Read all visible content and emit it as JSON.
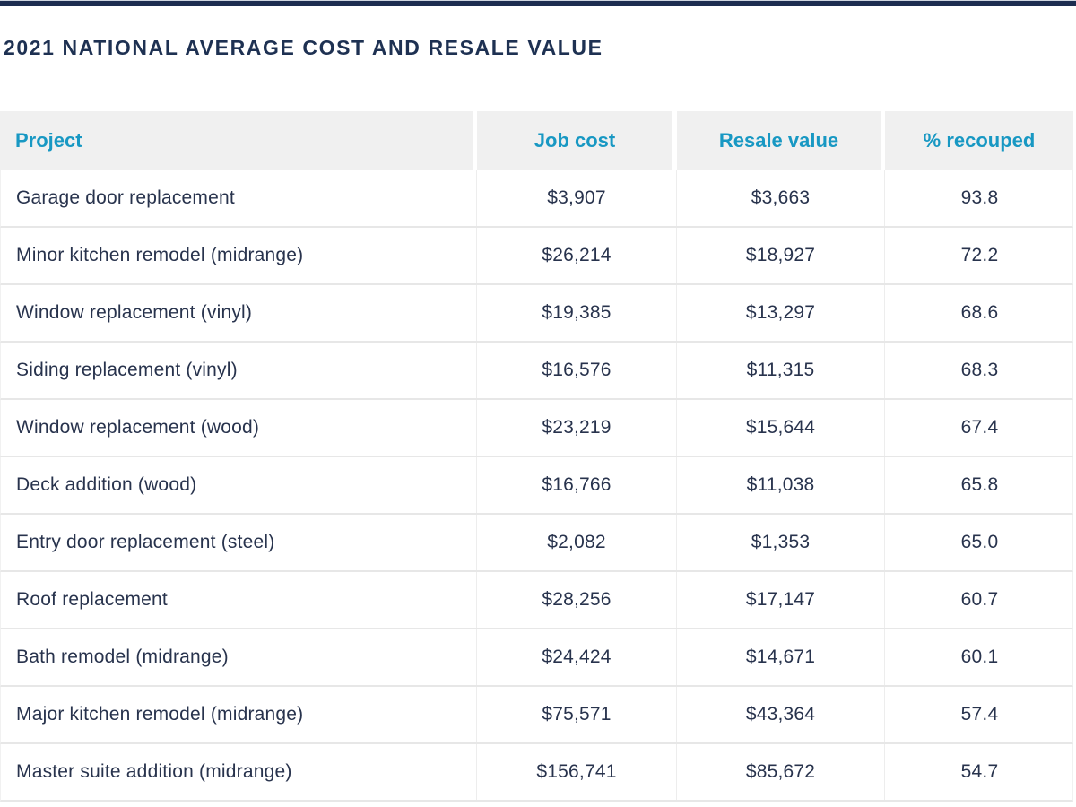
{
  "page": {
    "title": "2021 NATIONAL AVERAGE COST AND RESALE VALUE"
  },
  "colors": {
    "accent_teal": "#1898c3",
    "body_text_navy": "#28334d",
    "title_navy": "#1e3152",
    "top_bar_navy": "#1d2d50",
    "header_bg_gray": "#f0f0f0",
    "row_divider_gray": "#e7e7e7"
  },
  "table": {
    "columns": [
      "Project",
      "Job cost",
      "Resale value",
      "% recouped"
    ],
    "rows": [
      {
        "project": "Garage door replacement",
        "job_cost": "$3,907",
        "resale_value": "$3,663",
        "pct_recouped": "93.8"
      },
      {
        "project": "Minor kitchen remodel (midrange)",
        "job_cost": "$26,214",
        "resale_value": "$18,927",
        "pct_recouped": "72.2"
      },
      {
        "project": "Window replacement (vinyl)",
        "job_cost": "$19,385",
        "resale_value": "$13,297",
        "pct_recouped": "68.6"
      },
      {
        "project": "Siding replacement (vinyl)",
        "job_cost": "$16,576",
        "resale_value": "$11,315",
        "pct_recouped": "68.3"
      },
      {
        "project": "Window replacement (wood)",
        "job_cost": "$23,219",
        "resale_value": "$15,644",
        "pct_recouped": "67.4"
      },
      {
        "project": "Deck addition (wood)",
        "job_cost": "$16,766",
        "resale_value": "$11,038",
        "pct_recouped": "65.8"
      },
      {
        "project": "Entry door replacement (steel)",
        "job_cost": "$2,082",
        "resale_value": "$1,353",
        "pct_recouped": "65.0"
      },
      {
        "project": "Roof replacement",
        "job_cost": "$28,256",
        "resale_value": "$17,147",
        "pct_recouped": "60.7"
      },
      {
        "project": "Bath remodel (midrange)",
        "job_cost": "$24,424",
        "resale_value": "$14,671",
        "pct_recouped": "60.1"
      },
      {
        "project": "Major kitchen remodel (midrange)",
        "job_cost": "$75,571",
        "resale_value": "$43,364",
        "pct_recouped": "57.4"
      },
      {
        "project": "Master suite addition (midrange)",
        "job_cost": "$156,741",
        "resale_value": "$85,672",
        "pct_recouped": "54.7"
      }
    ]
  },
  "chart_data": {
    "type": "table",
    "title": "2021 National Average Cost and Resale Value",
    "columns": [
      "Project",
      "Job cost",
      "Resale value",
      "% recouped"
    ],
    "rows": [
      [
        "Garage door replacement",
        3907,
        3663,
        93.8
      ],
      [
        "Minor kitchen remodel (midrange)",
        26214,
        18927,
        72.2
      ],
      [
        "Window replacement (vinyl)",
        19385,
        13297,
        68.6
      ],
      [
        "Siding replacement (vinyl)",
        16576,
        11315,
        68.3
      ],
      [
        "Window replacement (wood)",
        23219,
        15644,
        67.4
      ],
      [
        "Deck addition (wood)",
        16766,
        11038,
        65.8
      ],
      [
        "Entry door replacement (steel)",
        2082,
        1353,
        65.0
      ],
      [
        "Roof replacement",
        28256,
        17147,
        60.7
      ],
      [
        "Bath remodel (midrange)",
        24424,
        14671,
        60.1
      ],
      [
        "Major kitchen remodel (midrange)",
        75571,
        43364,
        57.4
      ],
      [
        "Master suite addition (midrange)",
        156741,
        85672,
        54.7
      ]
    ]
  }
}
